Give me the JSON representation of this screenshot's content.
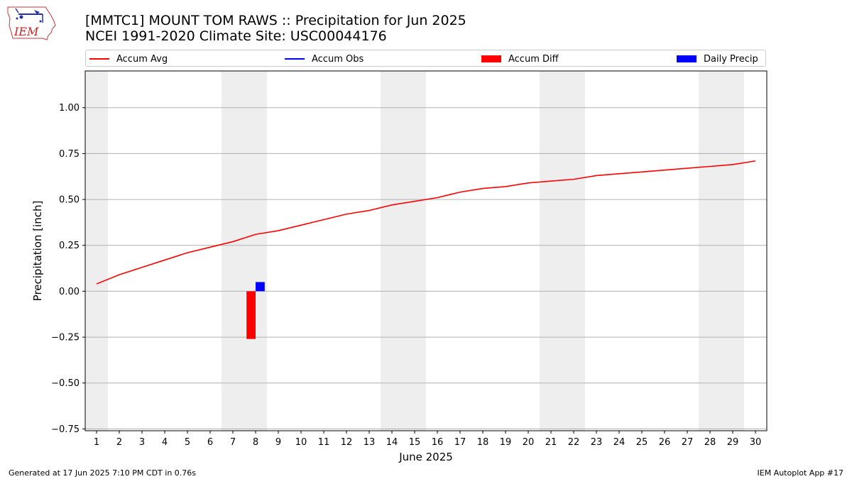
{
  "header": {
    "logo_text": "IEM",
    "title_line1": "[MMTC1] MOUNT TOM RAWS :: Precipitation for Jun 2025",
    "title_line2": "NCEI 1991-2020 Climate Site: USC00044176"
  },
  "legend": {
    "placement": "top",
    "items": [
      {
        "label": "Accum Avg",
        "kind": "line",
        "color": "#ff0000"
      },
      {
        "label": "Accum Obs",
        "kind": "line",
        "color": "#0000ff"
      },
      {
        "label": "Accum Diff",
        "kind": "bar",
        "color": "#ff0000"
      },
      {
        "label": "Daily Precip",
        "kind": "bar",
        "color": "#0000ff"
      }
    ]
  },
  "footer": {
    "left": "Generated at 17 Jun 2025 7:10 PM CDT in 0.76s",
    "right": "IEM Autoplot App #17"
  },
  "chart_data": {
    "type": "line",
    "title": "[MMTC1] MOUNT TOM RAWS :: Precipitation for Jun 2025",
    "subtitle": "NCEI 1991-2020 Climate Site: USC00044176",
    "xlabel": "June 2025",
    "ylabel": "Precipitation [inch]",
    "x": [
      1,
      2,
      3,
      4,
      5,
      6,
      7,
      8,
      9,
      10,
      11,
      12,
      13,
      14,
      15,
      16,
      17,
      18,
      19,
      20,
      21,
      22,
      23,
      24,
      25,
      26,
      27,
      28,
      29,
      30
    ],
    "xlim": [
      0.5,
      30.5
    ],
    "ylim": [
      -0.76,
      1.2
    ],
    "yticks": [
      -0.75,
      -0.5,
      -0.25,
      0.0,
      0.25,
      0.5,
      0.75,
      1.0
    ],
    "ytick_labels": [
      "−0.75",
      "−0.50",
      "−0.25",
      "0.00",
      "0.25",
      "0.50",
      "0.75",
      "1.00"
    ],
    "grid": true,
    "weekend_days": [
      1,
      7,
      8,
      14,
      15,
      21,
      22,
      28,
      29
    ],
    "weekend_color": "#eeeeee",
    "series": [
      {
        "name": "Accum Avg",
        "type": "line",
        "color": "#ff0000",
        "values": [
          0.04,
          0.09,
          0.13,
          0.17,
          0.21,
          0.24,
          0.27,
          0.31,
          0.33,
          0.36,
          0.39,
          0.42,
          0.44,
          0.47,
          0.49,
          0.51,
          0.54,
          0.56,
          0.57,
          0.59,
          0.6,
          0.61,
          0.63,
          0.64,
          0.65,
          0.66,
          0.67,
          0.68,
          0.69,
          0.71
        ]
      },
      {
        "name": "Accum Diff",
        "type": "bar",
        "color": "#ff0000",
        "points": [
          {
            "x": 8,
            "y": -0.26
          }
        ]
      },
      {
        "name": "Daily Precip",
        "type": "bar",
        "color": "#0000ff",
        "points": [
          {
            "x": 8,
            "y": 0.05
          }
        ]
      }
    ]
  }
}
